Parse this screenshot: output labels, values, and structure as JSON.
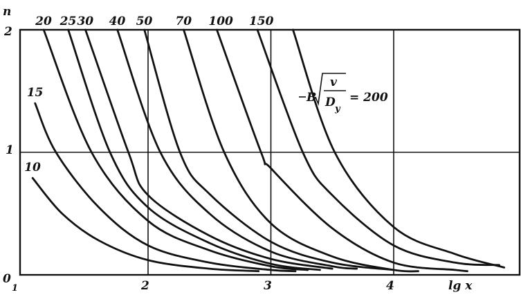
{
  "chart_data": {
    "type": "line",
    "xlabel": "lg x",
    "ylabel": "n",
    "xlim": [
      1,
      5
    ],
    "ylim": [
      0,
      2
    ],
    "x_ticks": [
      "2",
      "3",
      "4"
    ],
    "x_origin_label": "1",
    "y_ticks": [
      "0",
      "1",
      "2"
    ],
    "grid": "x at 2, 3, 4; y at 1",
    "annotation": {
      "prefix": "B",
      "numerator": "v",
      "denominator": "D",
      "denominator_sub": "y",
      "suffix": "= 200"
    },
    "series": [
      {
        "name": "10",
        "points": [
          [
            1.06,
            0.79
          ],
          [
            1.3,
            0.5
          ],
          [
            1.6,
            0.28
          ],
          [
            2.0,
            0.12
          ],
          [
            2.5,
            0.05
          ],
          [
            2.9,
            0.03
          ]
        ]
      },
      {
        "name": "15",
        "points": [
          [
            1.08,
            1.4
          ],
          [
            1.25,
            1.0
          ],
          [
            1.6,
            0.55
          ],
          [
            2.0,
            0.24
          ],
          [
            2.5,
            0.1
          ],
          [
            3.0,
            0.04
          ],
          [
            3.2,
            0.03
          ]
        ]
      },
      {
        "name": "20",
        "points": [
          [
            1.15,
            2
          ],
          [
            1.54,
            1
          ],
          [
            2.0,
            0.44
          ],
          [
            2.5,
            0.2
          ],
          [
            3.0,
            0.07
          ],
          [
            3.3,
            0.04
          ]
        ]
      },
      {
        "name": "25",
        "points": [
          [
            1.35,
            2
          ],
          [
            1.69,
            1
          ],
          [
            2.0,
            0.55
          ],
          [
            2.5,
            0.26
          ],
          [
            3.0,
            0.09
          ],
          [
            3.4,
            0.04
          ]
        ]
      },
      {
        "name": "30",
        "points": [
          [
            1.49,
            2
          ],
          [
            1.84,
            1
          ],
          [
            2.0,
            0.65
          ],
          [
            2.5,
            0.32
          ],
          [
            3.0,
            0.13
          ],
          [
            3.5,
            0.05
          ]
        ]
      },
      {
        "name": "40",
        "points": [
          [
            1.75,
            2
          ],
          [
            2.1,
            1
          ],
          [
            2.5,
            0.5
          ],
          [
            3.0,
            0.19
          ],
          [
            3.5,
            0.07
          ],
          [
            3.7,
            0.05
          ]
        ]
      },
      {
        "name": "50",
        "points": [
          [
            1.97,
            2
          ],
          [
            2.26,
            1
          ],
          [
            2.5,
            0.66
          ],
          [
            3.0,
            0.27
          ],
          [
            3.5,
            0.1
          ],
          [
            4.0,
            0.04
          ]
        ]
      },
      {
        "name": "70",
        "points": [
          [
            2.29,
            2
          ],
          [
            2.62,
            1
          ],
          [
            3.0,
            0.42
          ],
          [
            3.5,
            0.15
          ],
          [
            4.0,
            0.04
          ],
          [
            4.2,
            0.03
          ]
        ]
      },
      {
        "name": "100",
        "points": [
          [
            2.56,
            2
          ],
          [
            2.92,
            1
          ],
          [
            3.0,
            0.87
          ],
          [
            3.5,
            0.38
          ],
          [
            4.0,
            0.1
          ],
          [
            4.5,
            0.04
          ],
          [
            4.6,
            0.03
          ]
        ]
      },
      {
        "name": "150",
        "points": [
          [
            2.89,
            2
          ],
          [
            3.26,
            1
          ],
          [
            3.5,
            0.65
          ],
          [
            4.0,
            0.24
          ],
          [
            4.5,
            0.1
          ],
          [
            4.86,
            0.08
          ]
        ]
      },
      {
        "name": "200",
        "points": [
          [
            3.18,
            2
          ],
          [
            3.52,
            1
          ],
          [
            4.0,
            0.39
          ],
          [
            4.5,
            0.17
          ],
          [
            4.9,
            0.06
          ]
        ]
      }
    ]
  }
}
